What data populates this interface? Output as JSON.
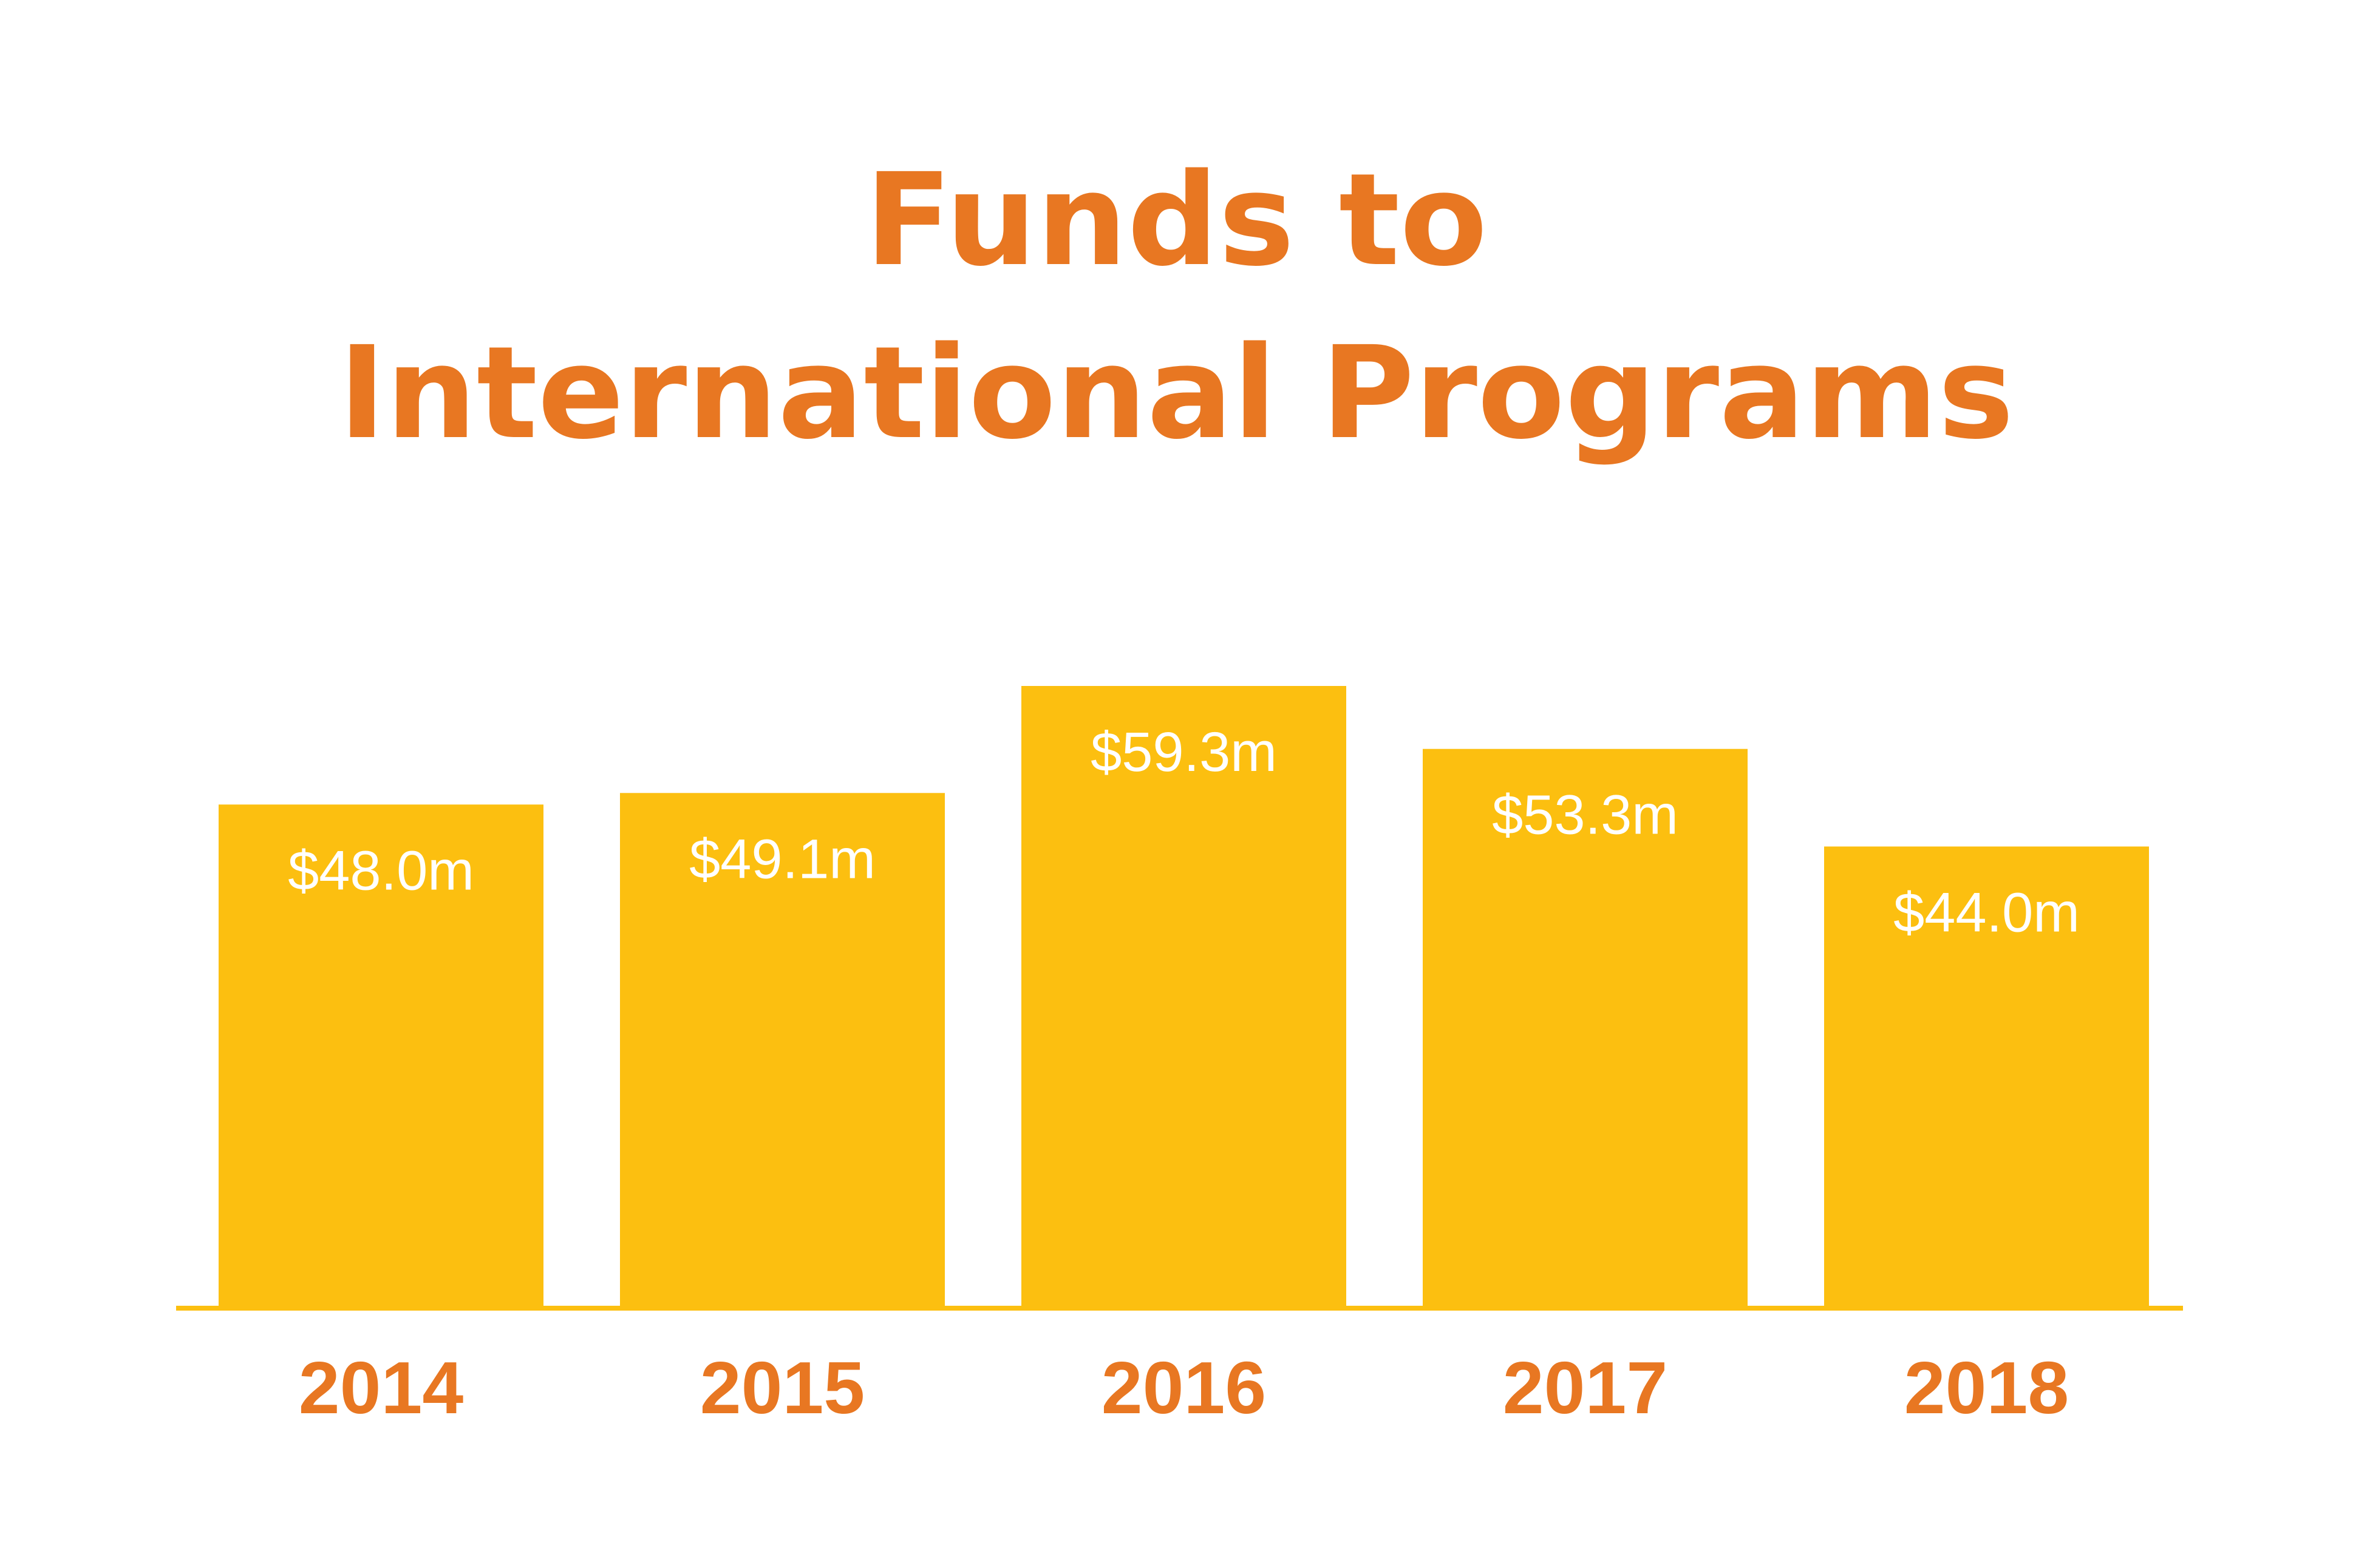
{
  "colors": {
    "title": "#E87722",
    "bar": "#FCBF10",
    "baseline": "#FCBF10",
    "value_label": "#FFFFFF",
    "tick_label": "#E87722",
    "background": "#FFFFFF"
  },
  "chart_data": {
    "type": "bar",
    "title_lines": [
      "Funds to",
      "International Programs"
    ],
    "categories": [
      "2014",
      "2015",
      "2016",
      "2017",
      "2018"
    ],
    "values": [
      48.0,
      49.1,
      59.3,
      53.3,
      44.0
    ],
    "value_labels": [
      "$48.0m",
      "$49.1m",
      "$59.3m",
      "$53.3m",
      "$44.0m"
    ],
    "xlabel": "",
    "ylabel": "",
    "ylim": [
      0,
      59.3
    ],
    "grid": false,
    "legend": "none"
  }
}
